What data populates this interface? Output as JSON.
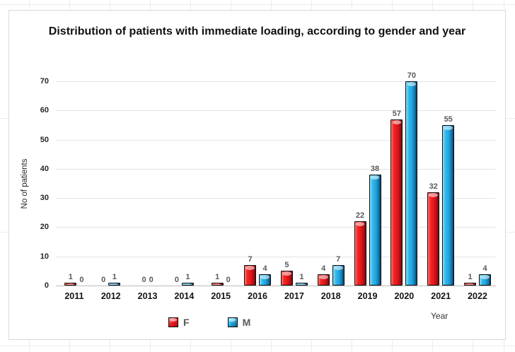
{
  "chart": {
    "title": "Distribution of patients with immediate loading, according to gender and year",
    "y_axis_title": "No of patients",
    "x_axis_title": "Year",
    "legend": [
      {
        "label": "F",
        "color": "#e8141b"
      },
      {
        "label": "M",
        "color": "#1ea6e0"
      }
    ]
  },
  "chart_data": {
    "type": "bar",
    "title": "Distribution of patients with immediate loading, according to gender and year",
    "categories": [
      "2011",
      "2012",
      "2013",
      "2014",
      "2015",
      "2016",
      "2017",
      "2018",
      "2019",
      "2020",
      "2021",
      "2022"
    ],
    "series": [
      {
        "name": "F",
        "color": "#e8141b",
        "values": [
          1,
          0,
          0,
          0,
          1,
          7,
          5,
          4,
          22,
          57,
          32,
          1
        ]
      },
      {
        "name": "M",
        "color": "#1ea6e0",
        "values": [
          0,
          1,
          0,
          1,
          0,
          4,
          1,
          7,
          38,
          70,
          55,
          4
        ]
      }
    ],
    "xlabel": "Year",
    "ylabel": "No of patients",
    "ylim": [
      0,
      70
    ],
    "yticks": [
      0,
      10,
      20,
      30,
      40,
      50,
      60,
      70
    ],
    "grid": true,
    "legend_position": "bottom",
    "data_labels": true
  }
}
